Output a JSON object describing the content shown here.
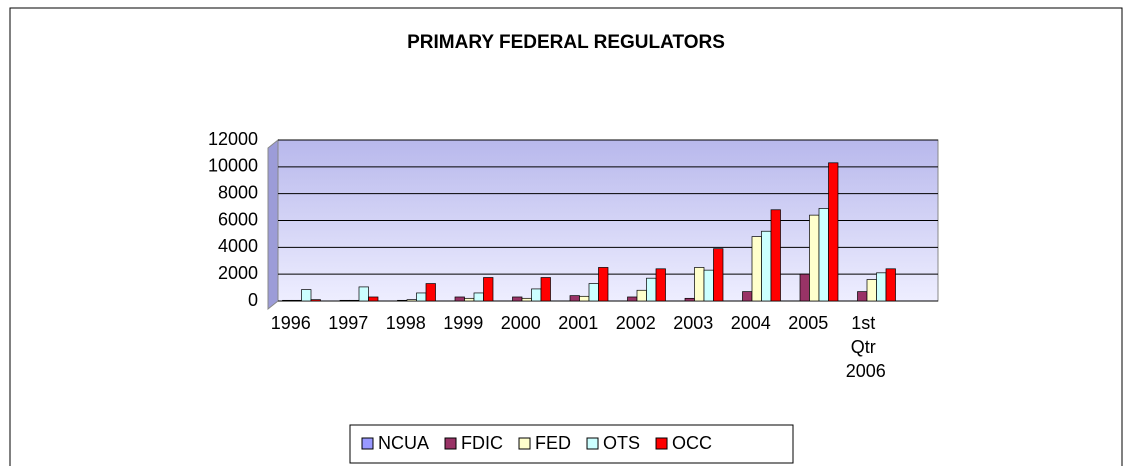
{
  "chart_data": {
    "type": "bar",
    "title": "PRIMARY FEDERAL REGULATORS",
    "categories": [
      "1996",
      "1997",
      "1998",
      "1999",
      "2000",
      "2001",
      "2002",
      "2003",
      "2004",
      "2005",
      "1st Qtr 2006"
    ],
    "series": [
      {
        "name": "NCUA",
        "color": "#9999ff",
        "values": [
          0,
          0,
          0,
          0,
          0,
          0,
          0,
          0,
          0,
          0,
          0
        ]
      },
      {
        "name": "FDIC",
        "color": "#993366",
        "values": [
          50,
          50,
          50,
          300,
          300,
          400,
          300,
          200,
          700,
          2000,
          700
        ]
      },
      {
        "name": "FED",
        "color": "#ffffcc",
        "values": [
          50,
          50,
          100,
          200,
          200,
          350,
          800,
          2500,
          4800,
          6400,
          1600
        ]
      },
      {
        "name": "OTS",
        "color": "#ccffff",
        "values": [
          850,
          1050,
          600,
          600,
          900,
          1300,
          1700,
          2300,
          5200,
          6900,
          2100
        ]
      },
      {
        "name": "OCC",
        "color": "#ff0000",
        "values": [
          100,
          300,
          1300,
          1750,
          1750,
          2500,
          2400,
          3900,
          6800,
          10300,
          2400
        ]
      }
    ],
    "ylim": [
      0,
      12000
    ],
    "yticks": [
      0,
      2000,
      4000,
      6000,
      8000,
      10000,
      12000
    ],
    "grid": true,
    "legend": "bottom"
  }
}
